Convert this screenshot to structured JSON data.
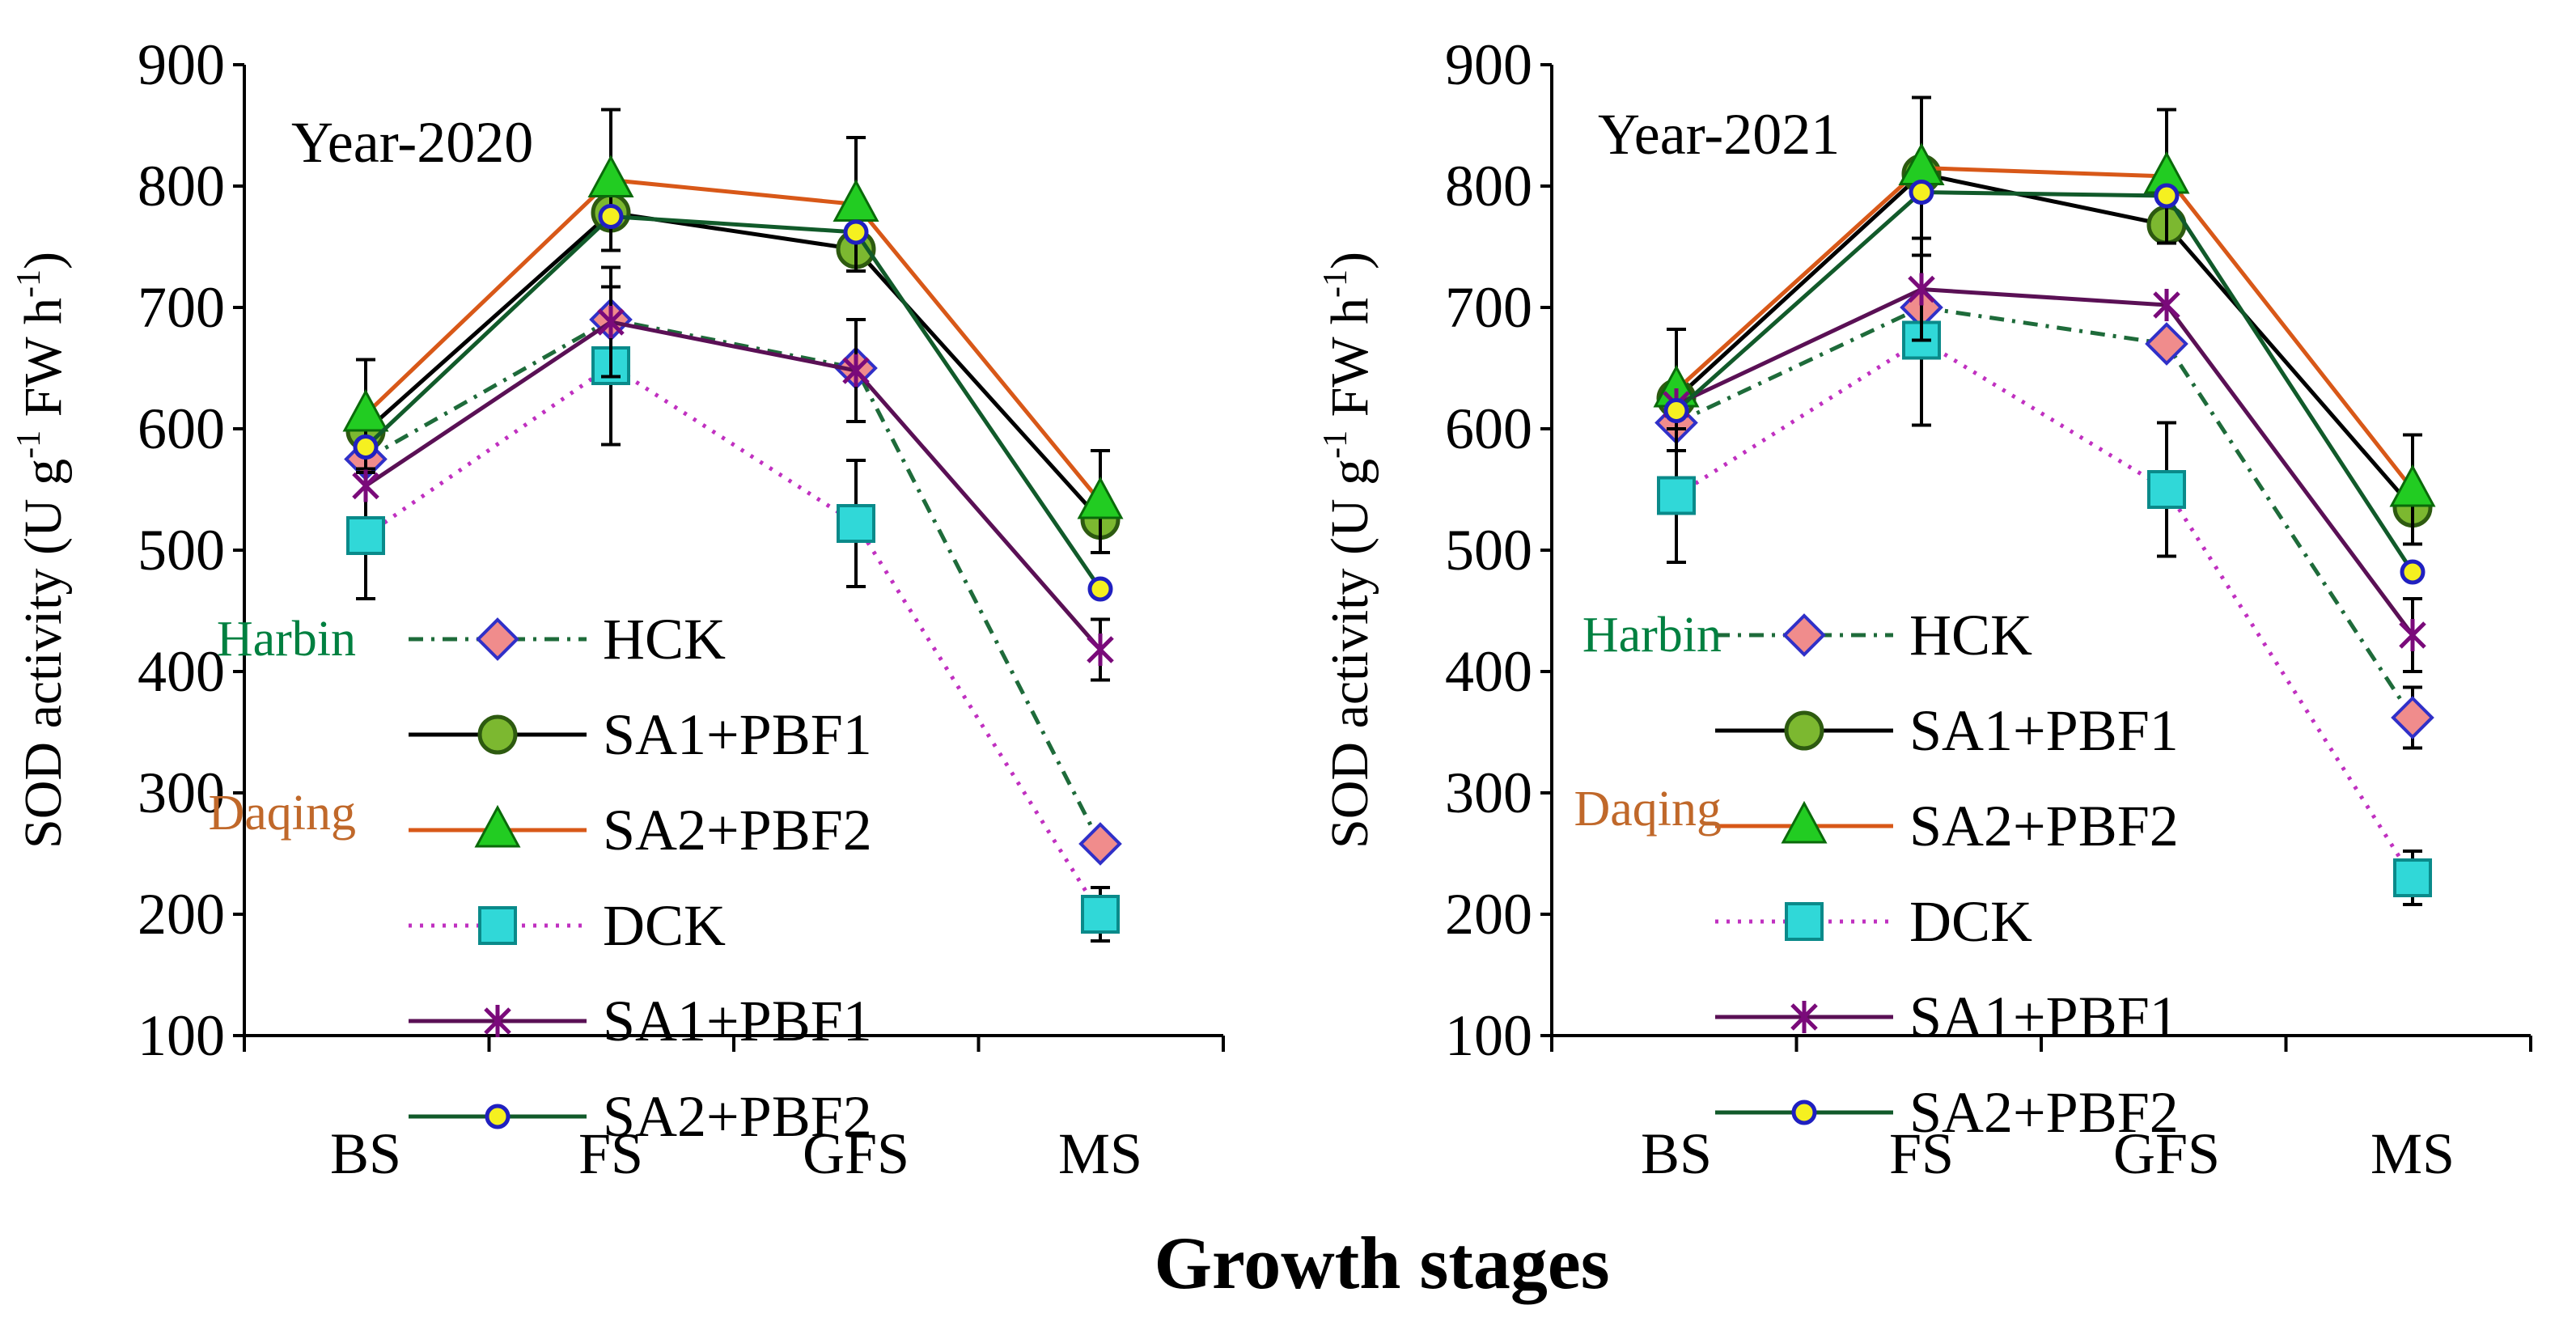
{
  "figure": {
    "xlabel": "Growth stages"
  },
  "chart_data": [
    {
      "type": "line",
      "title": "Year-2020",
      "ylabel": "SOD activity (U g-1 FW h-1)",
      "ylabel_parts": {
        "main": "SOD activity (U g",
        "sup1": "-1",
        "mid": " FW h",
        "sup2": "-1",
        "end": ")"
      },
      "xlabel": "Growth stages",
      "categories": [
        "BS",
        "FS",
        "GFS",
        "MS"
      ],
      "ylim": [
        100,
        900
      ],
      "yticks": [
        "100",
        "200",
        "300",
        "400",
        "500",
        "600",
        "700",
        "800",
        "900"
      ],
      "legend_groups": {
        "harbin": "Harbin",
        "daqing": "Daqing"
      },
      "series": [
        {
          "name": "HCK",
          "group": "Harbin",
          "values": [
            575,
            690,
            650,
            258
          ],
          "error": [
            0,
            0,
            0,
            0
          ]
        },
        {
          "name": "SA1+PBF1",
          "group": "Harbin",
          "values": [
            598,
            778,
            748,
            525
          ],
          "error": [
            0,
            0,
            0,
            0
          ]
        },
        {
          "name": "SA2+PBF2",
          "group": "Harbin",
          "values": [
            612,
            805,
            785,
            540
          ],
          "error": [
            45,
            58,
            55,
            42
          ]
        },
        {
          "name": "DCK",
          "group": "Daqing",
          "values": [
            512,
            652,
            522,
            200
          ],
          "error": [
            52,
            65,
            52,
            22
          ]
        },
        {
          "name": "SA1+PBF1",
          "group": "Daqing",
          "values": [
            553,
            688,
            648,
            418
          ],
          "error": [
            0,
            45,
            42,
            25
          ]
        },
        {
          "name": "SA2+PBF2",
          "group": "Daqing",
          "values": [
            585,
            775,
            762,
            468
          ],
          "error": [
            0,
            0,
            0,
            0
          ]
        }
      ]
    },
    {
      "type": "line",
      "title": "Year-2021",
      "ylabel": "SOD activity (U g-1 FW h-1)",
      "ylabel_parts": {
        "main": "SOD activity (U g",
        "sup1": "-1",
        "mid": " FW h",
        "sup2": "-1",
        "end": ")"
      },
      "xlabel": "Growth stages",
      "categories": [
        "BS",
        "FS",
        "GFS",
        "MS"
      ],
      "ylim": [
        100,
        900
      ],
      "yticks": [
        "100",
        "200",
        "300",
        "400",
        "500",
        "600",
        "700",
        "800",
        "900"
      ],
      "legend_groups": {
        "harbin": "Harbin",
        "daqing": "Daqing"
      },
      "series": [
        {
          "name": "HCK",
          "group": "Harbin",
          "values": [
            605,
            700,
            670,
            362
          ],
          "error": [
            0,
            0,
            0,
            25
          ]
        },
        {
          "name": "SA1+PBF1",
          "group": "Harbin",
          "values": [
            625,
            810,
            768,
            535
          ],
          "error": [
            0,
            0,
            0,
            0
          ]
        },
        {
          "name": "SA2+PBF2",
          "group": "Harbin",
          "values": [
            632,
            815,
            808,
            550
          ],
          "error": [
            50,
            58,
            55,
            45
          ]
        },
        {
          "name": "DCK",
          "group": "Daqing",
          "values": [
            545,
            673,
            550,
            230
          ],
          "error": [
            55,
            70,
            55,
            22
          ]
        },
        {
          "name": "SA1+PBF1",
          "group": "Daqing",
          "values": [
            620,
            715,
            702,
            430
          ],
          "error": [
            0,
            42,
            0,
            30
          ]
        },
        {
          "name": "SA2+PBF2",
          "group": "Daqing",
          "values": [
            615,
            795,
            792,
            482
          ],
          "error": [
            0,
            0,
            0,
            0
          ]
        }
      ]
    }
  ],
  "styles": {
    "harbin_color": "#008040",
    "daqing_color": "#c0682a",
    "series_styles": [
      {
        "color": "#1e6b3a",
        "dash": "18,10,4,10",
        "marker": "diamond",
        "fill": "#f08c8c",
        "stroke": "#3030c8"
      },
      {
        "color": "#000000",
        "dash": "",
        "marker": "circle-big",
        "fill": "#7cb830",
        "stroke": "#2d5a10"
      },
      {
        "color": "#d85818",
        "dash": "",
        "marker": "triangle",
        "fill": "#22cc22",
        "stroke": "#0a6a0a"
      },
      {
        "color": "#c030c0",
        "dash": "4,10",
        "marker": "square",
        "fill": "#30d8d8",
        "stroke": "#0a8a8a"
      },
      {
        "color": "#5a1055",
        "dash": "",
        "marker": "star",
        "fill": "none",
        "stroke": "#7a0a7a"
      },
      {
        "color": "#115a2a",
        "dash": "",
        "marker": "circle-small",
        "fill": "#f5f020",
        "stroke": "#2020c0"
      }
    ]
  }
}
